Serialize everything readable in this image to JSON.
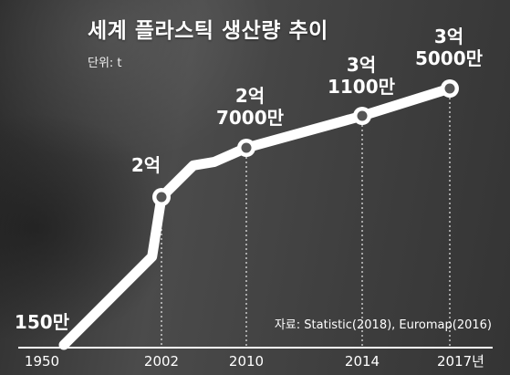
{
  "title": "세계 플라스틱 생산량 추이",
  "unit_label": "단위: t",
  "source": "자료: Statistic(2018), Euromap(2016)",
  "colors": {
    "line": "#ffffff",
    "background": "#3a3a3a",
    "axis": "#ffffff"
  },
  "chart_data": {
    "type": "line",
    "title": "세계 플라스틱 생산량 추이",
    "ylabel": "",
    "xlabel": "",
    "x_tick_labels": [
      "1950",
      "2002",
      "2010",
      "2014",
      "2017년"
    ],
    "series": [
      {
        "points": [
          {
            "year": 1950,
            "value": 1500000,
            "label": "150만",
            "marker": false
          },
          {
            "year": 1997,
            "value": 120000000,
            "marker": false
          },
          {
            "year": 2002,
            "value": 200000000,
            "label": "2억",
            "marker": true
          },
          {
            "year": 2005,
            "value": 245000000,
            "marker": false
          },
          {
            "year": 2007,
            "value": 250000000,
            "marker": false
          },
          {
            "year": 2010,
            "value": 270000000,
            "label": "2억\n7000만",
            "marker": true
          },
          {
            "year": 2014,
            "value": 311000000,
            "label": "3억\n1100만",
            "marker": true
          },
          {
            "year": 2017,
            "value": 350000000,
            "label": "3억\n5000만",
            "marker": true
          }
        ]
      }
    ],
    "guide_lines_at_marked_points": true,
    "grid": false
  }
}
